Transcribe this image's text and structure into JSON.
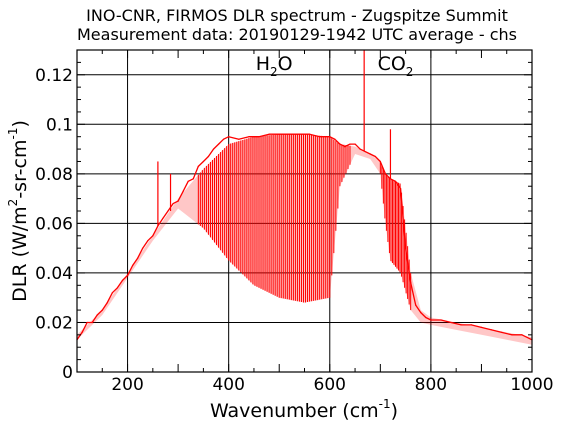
{
  "chart_data": {
    "type": "line",
    "title": "INO-CNR, FIRMOS DLR spectrum - Zugspitze Summit",
    "subtitle": "Measurement data: 20190129-1942 UTC average - chs",
    "xlabel": {
      "text": "Wavenumber (cm",
      "sup": "-1",
      "tail": ")"
    },
    "ylabel": {
      "text": "DLR (W/m",
      "sup1": "2",
      "mid": "-sr-cm",
      "sup2": "-1",
      "tail": ")"
    },
    "xlim": [
      100,
      1000
    ],
    "ylim": [
      0,
      0.13
    ],
    "xticks": [
      200,
      400,
      600,
      800,
      1000
    ],
    "xtick_labels": [
      "200",
      "400",
      "600",
      "800",
      "1000"
    ],
    "yticks": [
      0,
      0.02,
      0.04,
      0.06,
      0.08,
      0.1,
      0.12
    ],
    "ytick_labels": [
      "0",
      "0.02",
      "0.04",
      "0.06",
      "0.08",
      "0.1",
      "0.12"
    ],
    "grid": true,
    "series_color": "#ff0000",
    "annotations": [
      {
        "base": "H",
        "sub": "2",
        "tail": "O",
        "x": 490,
        "y": 0.122
      },
      {
        "base": "CO",
        "sub": "2",
        "tail": "",
        "x": 730,
        "y": 0.122
      }
    ],
    "series": [
      {
        "envelope": {
          "x": [
            100,
            150,
            200,
            250,
            300,
            350,
            400,
            450,
            500,
            550,
            600,
            620,
            650,
            680,
            700,
            710,
            720,
            740,
            760,
            780,
            800,
            850,
            900,
            950,
            1000
          ],
          "upper": [
            0.015,
            0.025,
            0.04,
            0.055,
            0.07,
            0.082,
            0.092,
            0.095,
            0.096,
            0.096,
            0.095,
            0.092,
            0.091,
            0.088,
            0.085,
            0.08,
            0.078,
            0.076,
            0.04,
            0.025,
            0.022,
            0.02,
            0.018,
            0.016,
            0.014
          ],
          "lower": [
            0.013,
            0.023,
            0.038,
            0.053,
            0.066,
            0.058,
            0.045,
            0.035,
            0.03,
            0.028,
            0.03,
            0.075,
            0.088,
            0.086,
            0.08,
            0.06,
            0.045,
            0.04,
            0.025,
            0.02,
            0.019,
            0.017,
            0.015,
            0.013,
            0.011
          ]
        },
        "points": [
          [
            100,
            0.013
          ],
          [
            110,
            0.016
          ],
          [
            120,
            0.02
          ],
          [
            130,
            0.02
          ],
          [
            140,
            0.023
          ],
          [
            150,
            0.025
          ],
          [
            160,
            0.028
          ],
          [
            170,
            0.032
          ],
          [
            180,
            0.034
          ],
          [
            190,
            0.037
          ],
          [
            200,
            0.039
          ],
          [
            210,
            0.043
          ],
          [
            220,
            0.046
          ],
          [
            230,
            0.05
          ],
          [
            240,
            0.053
          ],
          [
            250,
            0.055
          ],
          [
            260,
            0.059
          ],
          [
            270,
            0.062
          ],
          [
            280,
            0.065
          ],
          [
            290,
            0.068
          ],
          [
            300,
            0.069
          ],
          [
            310,
            0.073
          ],
          [
            320,
            0.077
          ],
          [
            330,
            0.078
          ],
          [
            340,
            0.083
          ],
          [
            350,
            0.085
          ],
          [
            360,
            0.087
          ],
          [
            370,
            0.09
          ],
          [
            380,
            0.092
          ],
          [
            390,
            0.094
          ],
          [
            400,
            0.095
          ],
          [
            420,
            0.094
          ],
          [
            440,
            0.095
          ],
          [
            460,
            0.095
          ],
          [
            480,
            0.096
          ],
          [
            500,
            0.096
          ],
          [
            520,
            0.096
          ],
          [
            540,
            0.096
          ],
          [
            560,
            0.096
          ],
          [
            580,
            0.095
          ],
          [
            600,
            0.095
          ],
          [
            610,
            0.094
          ],
          [
            620,
            0.092
          ],
          [
            630,
            0.091
          ],
          [
            640,
            0.092
          ],
          [
            650,
            0.092
          ],
          [
            660,
            0.09
          ],
          [
            670,
            0.089
          ],
          [
            680,
            0.088
          ],
          [
            690,
            0.087
          ],
          [
            700,
            0.085
          ],
          [
            710,
            0.08
          ],
          [
            720,
            0.078
          ],
          [
            730,
            0.077
          ],
          [
            740,
            0.074
          ],
          [
            750,
            0.05
          ],
          [
            760,
            0.036
          ],
          [
            770,
            0.027
          ],
          [
            780,
            0.024
          ],
          [
            790,
            0.022
          ],
          [
            800,
            0.021
          ],
          [
            820,
            0.021
          ],
          [
            840,
            0.02
          ],
          [
            860,
            0.019
          ],
          [
            880,
            0.019
          ],
          [
            900,
            0.018
          ],
          [
            920,
            0.017
          ],
          [
            940,
            0.016
          ],
          [
            960,
            0.015
          ],
          [
            980,
            0.015
          ],
          [
            1000,
            0.013
          ]
        ],
        "spikes": [
          {
            "x": 668,
            "y": 0.13
          },
          {
            "x": 720,
            "y": 0.098
          },
          {
            "x": 260,
            "y": 0.085
          },
          {
            "x": 285,
            "y": 0.08
          }
        ]
      }
    ]
  }
}
